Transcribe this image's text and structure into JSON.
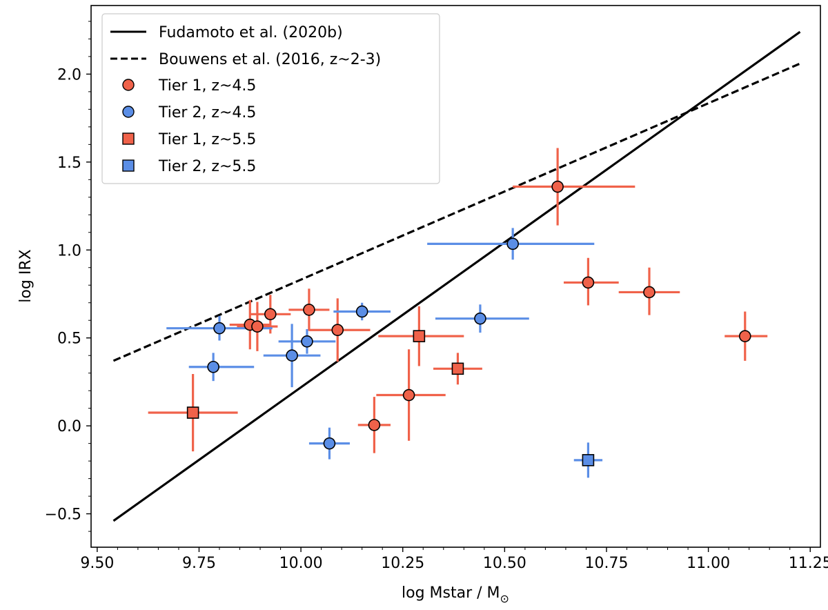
{
  "chart_data": {
    "type": "scatter",
    "title": "",
    "xlabel": "log Mstar / M",
    "xlabel_sub": "⊙",
    "ylabel": "log IRX",
    "xlim": [
      9.485,
      11.275
    ],
    "ylim": [
      -0.69,
      2.39
    ],
    "xticks": [
      9.5,
      9.75,
      10.0,
      10.25,
      10.5,
      10.75,
      11.0,
      11.25
    ],
    "xtick_labels": [
      "9.50",
      "9.75",
      "10.00",
      "10.25",
      "10.50",
      "10.75",
      "11.00",
      "11.25"
    ],
    "yticks": [
      -0.5,
      0.0,
      0.5,
      1.0,
      1.5,
      2.0
    ],
    "ytick_labels": [
      "−0.5",
      "0.0",
      "0.5",
      "1.0",
      "1.5",
      "2.0"
    ],
    "colors": {
      "tier1": "#f0624a",
      "tier2": "#5b8ee6",
      "line": "#000000"
    },
    "lines": [
      {
        "name": "Fudamoto et al. (2020b)",
        "style": "solid",
        "x": [
          9.54,
          11.225
        ],
        "y": [
          -0.54,
          2.24
        ]
      },
      {
        "name": "Bouwens et al. (2016, z~2-3)",
        "style": "dashed",
        "x": [
          9.54,
          11.225
        ],
        "y": [
          0.37,
          2.06
        ]
      }
    ],
    "series": [
      {
        "name": "Tier 1, z~4.5",
        "marker": "circle",
        "color": "#f0624a",
        "points": [
          {
            "x": 10.63,
            "y": 1.36,
            "xerr": [
              0.11,
              0.19
            ],
            "yerr": [
              0.22,
              0.22
            ]
          },
          {
            "x": 10.705,
            "y": 0.815,
            "xerr": [
              0.06,
              0.075
            ],
            "yerr": [
              0.13,
              0.14
            ]
          },
          {
            "x": 10.855,
            "y": 0.76,
            "xerr": [
              0.075,
              0.075
            ],
            "yerr": [
              0.13,
              0.14
            ]
          },
          {
            "x": 11.09,
            "y": 0.51,
            "xerr": [
              0.05,
              0.055
            ],
            "yerr": [
              0.14,
              0.14
            ]
          },
          {
            "x": 9.925,
            "y": 0.635,
            "xerr": [
              0.05,
              0.05
            ],
            "yerr": [
              0.11,
              0.11
            ]
          },
          {
            "x": 9.875,
            "y": 0.575,
            "xerr": [
              0.05,
              0.05
            ],
            "yerr": [
              0.14,
              0.14
            ]
          },
          {
            "x": 9.893,
            "y": 0.565,
            "xerr": [
              0.05,
              0.05
            ],
            "yerr": [
              0.14,
              0.14
            ]
          },
          {
            "x": 10.02,
            "y": 0.66,
            "xerr": [
              0.05,
              0.05
            ],
            "yerr": [
              0.12,
              0.12
            ]
          },
          {
            "x": 10.09,
            "y": 0.545,
            "xerr": [
              0.07,
              0.08
            ],
            "yerr": [
              0.18,
              0.18
            ]
          },
          {
            "x": 10.265,
            "y": 0.175,
            "xerr": [
              0.08,
              0.09
            ],
            "yerr": [
              0.26,
              0.26
            ]
          },
          {
            "x": 10.18,
            "y": 0.005,
            "xerr": [
              0.04,
              0.04
            ],
            "yerr": [
              0.16,
              0.16
            ]
          }
        ]
      },
      {
        "name": "Tier 2, z~4.5",
        "marker": "circle",
        "color": "#5b8ee6",
        "points": [
          {
            "x": 10.52,
            "y": 1.035,
            "xerr": [
              0.21,
              0.2
            ],
            "yerr": [
              0.09,
              0.09
            ]
          },
          {
            "x": 10.44,
            "y": 0.61,
            "xerr": [
              0.11,
              0.12
            ],
            "yerr": [
              0.08,
              0.08
            ]
          },
          {
            "x": 10.15,
            "y": 0.65,
            "xerr": [
              0.07,
              0.07
            ],
            "yerr": [
              0.05,
              0.05
            ]
          },
          {
            "x": 9.8,
            "y": 0.555,
            "xerr": [
              0.13,
              0.13
            ],
            "yerr": [
              0.07,
              0.07
            ]
          },
          {
            "x": 10.015,
            "y": 0.48,
            "xerr": [
              0.07,
              0.07
            ],
            "yerr": [
              0.07,
              0.07
            ]
          },
          {
            "x": 9.785,
            "y": 0.335,
            "xerr": [
              0.06,
              0.1
            ],
            "yerr": [
              0.08,
              0.08
            ]
          },
          {
            "x": 9.978,
            "y": 0.4,
            "xerr": [
              0.07,
              0.07
            ],
            "yerr": [
              0.18,
              0.18
            ]
          },
          {
            "x": 10.07,
            "y": -0.1,
            "xerr": [
              0.05,
              0.05
            ],
            "yerr": [
              0.09,
              0.09
            ]
          }
        ]
      },
      {
        "name": "Tier 1, z~5.5",
        "marker": "square",
        "color": "#f0624a",
        "points": [
          {
            "x": 9.735,
            "y": 0.075,
            "xerr": [
              0.11,
              0.11
            ],
            "yerr": [
              0.22,
              0.22
            ]
          },
          {
            "x": 10.29,
            "y": 0.51,
            "xerr": [
              0.1,
              0.11
            ],
            "yerr": [
              0.17,
              0.17
            ]
          },
          {
            "x": 10.385,
            "y": 0.325,
            "xerr": [
              0.06,
              0.06
            ],
            "yerr": [
              0.09,
              0.09
            ]
          }
        ]
      },
      {
        "name": "Tier 2, z~5.5",
        "marker": "square",
        "color": "#5b8ee6",
        "points": [
          {
            "x": 10.705,
            "y": -0.195,
            "xerr": [
              0.035,
              0.035
            ],
            "yerr": [
              0.1,
              0.1
            ]
          }
        ]
      }
    ],
    "legend": {
      "position": "top-left",
      "entries": [
        "Fudamoto et al. (2020b)",
        "Bouwens et al. (2016, z~2-3)",
        "Tier 1, z~4.5",
        "Tier 2, z~4.5",
        "Tier 1, z~5.5",
        "Tier 2, z~5.5"
      ]
    }
  }
}
